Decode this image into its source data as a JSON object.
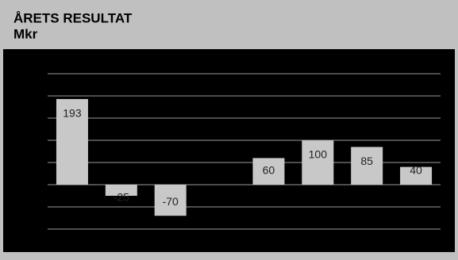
{
  "chart_data": {
    "type": "bar",
    "title": "ÅRETS RESULTAT",
    "subtitle": "Mkr",
    "categories": [
      null,
      null,
      null,
      null,
      null,
      null,
      null,
      null
    ],
    "values": [
      193,
      -25,
      -70,
      null,
      60,
      100,
      85,
      40
    ],
    "color": "#c8c8c8",
    "ylim": [
      -150,
      300
    ],
    "yticks": [
      -100,
      -50,
      0,
      50,
      100,
      150,
      200,
      250
    ],
    "grid": true
  }
}
